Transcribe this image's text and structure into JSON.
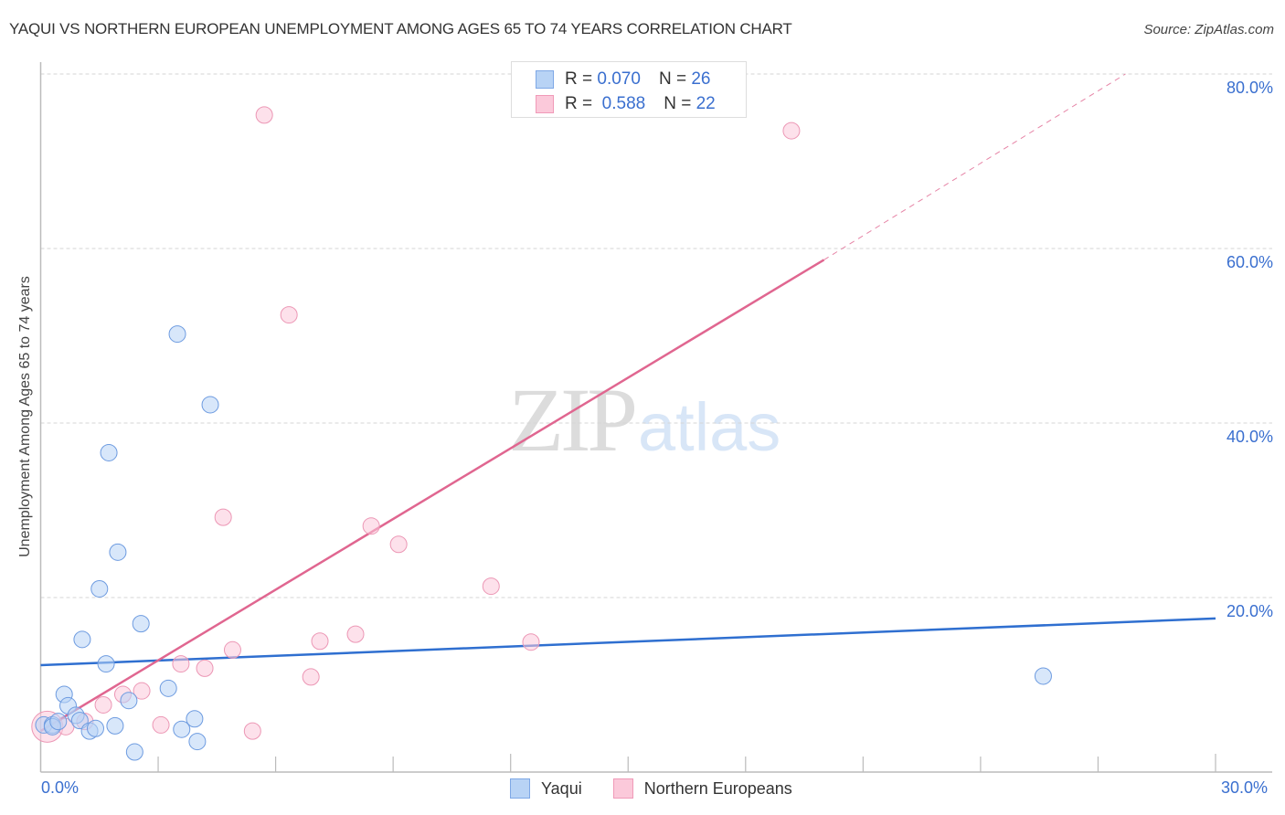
{
  "header": {
    "title": "YAQUI VS NORTHERN EUROPEAN UNEMPLOYMENT AMONG AGES 65 TO 74 YEARS CORRELATION CHART",
    "source": "Source: ZipAtlas.com"
  },
  "watermark": {
    "zip": "ZIP",
    "atlas": "atlas"
  },
  "legend_top": {
    "rows": [
      {
        "r_label": "R =",
        "r_value": "0.070",
        "n_label": "N =",
        "n_value": "26"
      },
      {
        "r_label": "R =",
        "r_value": "0.588",
        "n_label": "N =",
        "n_value": "22"
      }
    ]
  },
  "legend_bottom": {
    "items": [
      {
        "label": "Yaqui"
      },
      {
        "label": "Northern Europeans"
      }
    ]
  },
  "axes": {
    "ylabel": "Unemployment Among Ages 65 to 74 years",
    "yticks": [
      "80.0%",
      "60.0%",
      "40.0%",
      "20.0%"
    ],
    "xticks": [
      "0.0%",
      "30.0%"
    ]
  },
  "colors": {
    "blue_fill": "#b8d3f5",
    "blue_stroke": "#6d9be0",
    "blue_line": "#2f6fd0",
    "pink_fill": "#fbc9da",
    "pink_stroke": "#ec97b5",
    "pink_line": "#e06690",
    "tick_label": "#3a6fcf"
  },
  "chart_data": {
    "type": "scatter",
    "title": "YAQUI VS NORTHERN EUROPEAN UNEMPLOYMENT AMONG AGES 65 TO 74 YEARS CORRELATION CHART",
    "xlabel": "",
    "ylabel": "Unemployment Among Ages 65 to 74 years",
    "xlim": [
      0,
      30
    ],
    "ylim": [
      0,
      80
    ],
    "x_tick_labels": [
      "0.0%",
      "30.0%"
    ],
    "y_tick_labels": [
      "20.0%",
      "40.0%",
      "60.0%",
      "80.0%"
    ],
    "grid": "horizontal dashed",
    "legend_position": "top-center and bottom",
    "series": [
      {
        "name": "Yaqui",
        "R": 0.07,
        "N": 26,
        "points": [
          [
            0.08,
            5.4
          ],
          [
            0.3,
            5.4
          ],
          [
            0.3,
            5.2
          ],
          [
            0.45,
            5.8
          ],
          [
            0.6,
            8.9
          ],
          [
            0.7,
            7.6
          ],
          [
            0.9,
            6.5
          ],
          [
            1.0,
            5.9
          ],
          [
            1.06,
            15.2
          ],
          [
            1.25,
            4.7
          ],
          [
            1.4,
            5.0
          ],
          [
            1.5,
            21.0
          ],
          [
            1.67,
            12.4
          ],
          [
            1.74,
            36.6
          ],
          [
            1.9,
            5.3
          ],
          [
            1.97,
            25.2
          ],
          [
            2.25,
            8.2
          ],
          [
            2.4,
            2.3
          ],
          [
            2.56,
            17.0
          ],
          [
            3.26,
            9.6
          ],
          [
            3.49,
            50.2
          ],
          [
            3.6,
            4.9
          ],
          [
            3.93,
            6.1
          ],
          [
            4.0,
            3.5
          ],
          [
            4.33,
            42.1
          ],
          [
            25.6,
            11.0
          ]
        ],
        "trendline": {
          "x": [
            0,
            30
          ],
          "y": [
            12.25,
            17.6
          ]
        }
      },
      {
        "name": "Northern Europeans",
        "R": 0.588,
        "N": 22,
        "points": [
          [
            0.17,
            5.2
          ],
          [
            0.64,
            5.2
          ],
          [
            1.13,
            5.8
          ],
          [
            1.6,
            7.7
          ],
          [
            2.1,
            8.9
          ],
          [
            2.58,
            9.3
          ],
          [
            3.07,
            5.4
          ],
          [
            3.58,
            12.4
          ],
          [
            4.19,
            11.9
          ],
          [
            4.66,
            29.2
          ],
          [
            4.9,
            14.0
          ],
          [
            5.41,
            4.7
          ],
          [
            5.71,
            75.3
          ],
          [
            6.34,
            52.4
          ],
          [
            6.9,
            10.9
          ],
          [
            7.13,
            15.0
          ],
          [
            8.04,
            15.8
          ],
          [
            8.44,
            28.2
          ],
          [
            9.14,
            26.1
          ],
          [
            11.5,
            21.3
          ],
          [
            12.52,
            14.9
          ],
          [
            19.17,
            73.5
          ]
        ],
        "trendline": {
          "x": [
            0,
            20.0
          ],
          "y": [
            4.7,
            58.7
          ],
          "dashed_extension": {
            "x": [
              20.0,
              27.7
            ],
            "y": [
              58.7,
              80.0
            ]
          }
        }
      }
    ]
  }
}
